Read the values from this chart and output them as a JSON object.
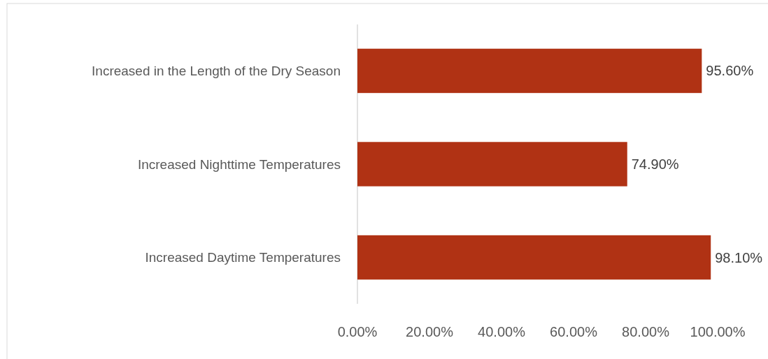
{
  "chart_data": {
    "type": "bar",
    "orientation": "horizontal",
    "categories": [
      "Increased in the Length of the Dry Season",
      "Increased Nighttime Temperatures",
      "Increased Daytime Temperatures"
    ],
    "values": [
      95.6,
      74.9,
      98.1
    ],
    "value_labels": [
      "95.60%",
      "74.90%",
      "98.10%"
    ],
    "color": "#b03214",
    "xlim": [
      0,
      100
    ],
    "xticks": [
      {
        "value": 0,
        "label": "0.00%"
      },
      {
        "value": 20,
        "label": "20.00%"
      },
      {
        "value": 40,
        "label": "40.00%"
      },
      {
        "value": 60,
        "label": "60.00%"
      },
      {
        "value": 80,
        "label": "80.00%"
      },
      {
        "value": 100,
        "label": "100.00%"
      }
    ],
    "grid": false
  }
}
